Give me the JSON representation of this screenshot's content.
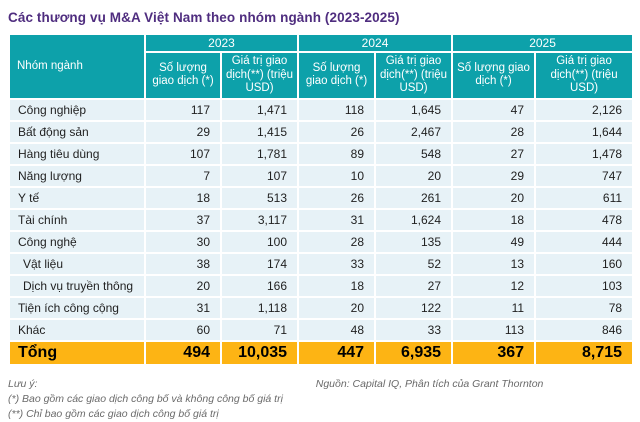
{
  "chart_data": {
    "type": "table",
    "title": "Các thương vụ M&A Việt Nam theo nhóm ngành (2023-2025)",
    "row_header": "Nhóm ngành",
    "year_groups": [
      "2023",
      "2024",
      "2025"
    ],
    "subcolumns": [
      "Số lượng giao dịch (*)",
      "Giá trị giao dịch(**) (triệu USD)"
    ],
    "rows": [
      {
        "name": "Công nghiệp",
        "indent": false,
        "values": [
          "117",
          "1,471",
          "118",
          "1,645",
          "47",
          "2,126"
        ]
      },
      {
        "name": "Bất động sản",
        "indent": false,
        "values": [
          "29",
          "1,415",
          "26",
          "2,467",
          "28",
          "1,644"
        ]
      },
      {
        "name": "Hàng tiêu dùng",
        "indent": false,
        "values": [
          "107",
          "1,781",
          "89",
          "548",
          "27",
          "1,478"
        ]
      },
      {
        "name": "Năng lượng",
        "indent": false,
        "values": [
          "7",
          "107",
          "10",
          "20",
          "29",
          "747"
        ]
      },
      {
        "name": "Y tế",
        "indent": false,
        "values": [
          "18",
          "513",
          "26",
          "261",
          "20",
          "611"
        ]
      },
      {
        "name": "Tài chính",
        "indent": false,
        "values": [
          "37",
          "3,117",
          "31",
          "1,624",
          "18",
          "478"
        ]
      },
      {
        "name": "Công nghệ",
        "indent": false,
        "values": [
          "30",
          "100",
          "28",
          "135",
          "49",
          "444"
        ]
      },
      {
        "name": "Vật liệu",
        "indent": true,
        "values": [
          "38",
          "174",
          "33",
          "52",
          "13",
          "160"
        ]
      },
      {
        "name": "Dịch vụ truyền thông",
        "indent": true,
        "values": [
          "20",
          "166",
          "18",
          "27",
          "12",
          "103"
        ]
      },
      {
        "name": "Tiện ích công cộng",
        "indent": false,
        "values": [
          "31",
          "1,118",
          "20",
          "122",
          "11",
          "78"
        ]
      },
      {
        "name": "Khác",
        "indent": false,
        "values": [
          "60",
          "71",
          "48",
          "33",
          "113",
          "846"
        ]
      }
    ],
    "total": {
      "label": "Tổng",
      "values": [
        "494",
        "10,035",
        "447",
        "6,935",
        "367",
        "8,715"
      ]
    }
  },
  "footer": {
    "note_title": "Lưu ý:",
    "notes": [
      "(*) Bao gồm các giao dịch công bố và không công bố giá trị",
      "(**) Chỉ bao gồm các giao dịch công bố giá trị"
    ],
    "source": "Nguồn: Capital IQ, Phân tích của Grant Thornton"
  },
  "colors": {
    "title": "#4F2D7F",
    "header_teal": "#0DA1AA",
    "row_blue": "#E7F2F7",
    "total_yellow": "#FDB414",
    "body_text": "#1F1F1F",
    "note_text": "#6A6A6A"
  }
}
